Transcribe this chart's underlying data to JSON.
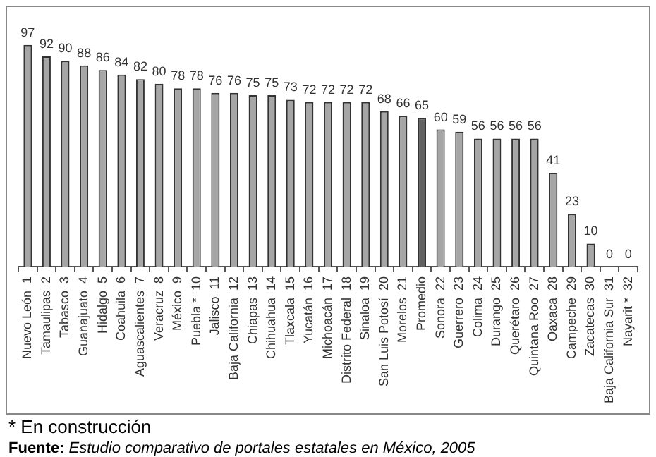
{
  "chart_data": {
    "type": "bar",
    "categories": [
      "Nuevo León  1",
      "Tamaulipas  2",
      "Tabasco  3",
      "Guanajuato  4",
      "Hidalgo  5",
      "Coahuila  6",
      "Aguascalientes  7",
      "Veracruz  8",
      "México  9",
      "Puebla *  10",
      "Jalisco  11",
      "Baja California  12",
      "Chiapas  13",
      "Chihuahua  14",
      "Tlaxcala  15",
      "Yucatán  16",
      "Michoacán  17",
      "Distrito Federal  18",
      "Sinaloa  19",
      "San Luis Potosí  20",
      "Morelos  21",
      "Promedio",
      "Sonora  22",
      "Guerrero  23",
      "Colima  24",
      "Durango  25",
      "Querétaro  26",
      "Quintana Roo  27",
      "Oaxaca  28",
      "Campeche  29",
      "Zacatecas  30",
      "Baja California Sur  31",
      "Nayarit *  32"
    ],
    "values": [
      97,
      92,
      90,
      88,
      86,
      84,
      82,
      80,
      78,
      78,
      76,
      76,
      75,
      75,
      73,
      72,
      72,
      72,
      72,
      68,
      66,
      65,
      60,
      59,
      56,
      56,
      56,
      56,
      41,
      23,
      10,
      0,
      0
    ],
    "colors": [
      "#a6a6a6",
      "#a6a6a6",
      "#a6a6a6",
      "#a6a6a6",
      "#a6a6a6",
      "#a6a6a6",
      "#a6a6a6",
      "#a6a6a6",
      "#a6a6a6",
      "#a6a6a6",
      "#a6a6a6",
      "#a6a6a6",
      "#a6a6a6",
      "#a6a6a6",
      "#a6a6a6",
      "#a6a6a6",
      "#a6a6a6",
      "#a6a6a6",
      "#a6a6a6",
      "#a6a6a6",
      "#a6a6a6",
      "#616161",
      "#a6a6a6",
      "#a6a6a6",
      "#a6a6a6",
      "#a6a6a6",
      "#a6a6a6",
      "#a6a6a6",
      "#a6a6a6",
      "#a6a6a6",
      "#a6a6a6",
      "#a6a6a6",
      "#a6a6a6"
    ],
    "data_labels": true,
    "grid": false,
    "legend": false,
    "annotations": [
      "* En construcción",
      "Fuente: Estudio comparativo de portales estatales en México, 2005"
    ]
  }
}
